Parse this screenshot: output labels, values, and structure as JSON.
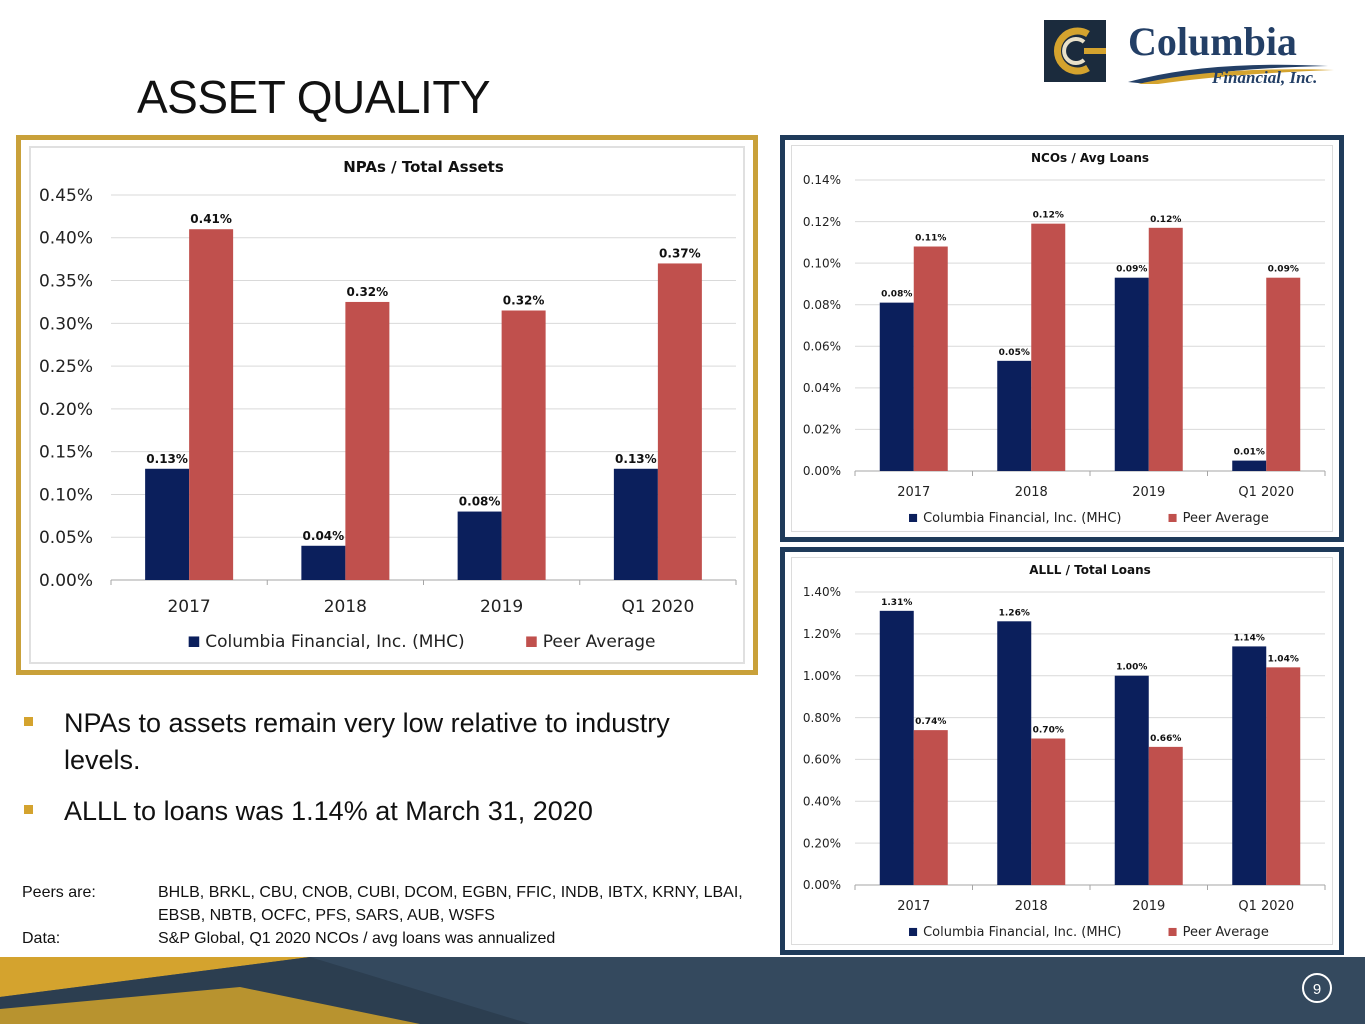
{
  "title": "ASSET QUALITY",
  "logo": {
    "name": "Columbia",
    "subtitle": "Financial, Inc."
  },
  "bullets": [
    "NPAs to assets remain very low relative to industry levels.",
    "ALLL to loans was 1.14% at March 31, 2020"
  ],
  "notes": [
    {
      "label": "Peers are:",
      "text": "BHLB, BRKL, CBU, CNOB, CUBI, DCOM, EGBN, FFIC, INDB, IBTX, KRNY, LBAI, EBSB, NBTB, OCFC, PFS, SARS, AUB, WSFS"
    },
    {
      "label": "Data:",
      "text": "S&P Global, Q1 2020 NCOs / avg loans was annualized"
    }
  ],
  "page_number": "9",
  "colors": {
    "series1": "#0b1f5c",
    "series2": "#c0504d",
    "gold": "#c9a13a",
    "navy_frame": "#1f3b5a",
    "footer": "#34495e"
  },
  "chart_data": [
    {
      "type": "bar",
      "title": "NPAs / Total Assets",
      "categories": [
        "2017",
        "2018",
        "2019",
        "Q1 2020"
      ],
      "series": [
        {
          "name": "Columbia Financial, Inc. (MHC)",
          "values": [
            0.13,
            0.04,
            0.08,
            0.13
          ],
          "labels": [
            "0.13%",
            "0.04%",
            "0.08%",
            "0.13%"
          ]
        },
        {
          "name": "Peer Average",
          "values": [
            0.41,
            0.325,
            0.315,
            0.37
          ],
          "labels": [
            "0.41%",
            "0.32%",
            "0.32%",
            "0.37%"
          ]
        }
      ],
      "ylim": [
        0,
        0.45
      ],
      "yticks": [
        "0.00%",
        "0.05%",
        "0.10%",
        "0.15%",
        "0.20%",
        "0.25%",
        "0.30%",
        "0.35%",
        "0.40%",
        "0.45%"
      ],
      "grid": true,
      "legend": "bottom"
    },
    {
      "type": "bar",
      "title": "NCOs / Avg Loans",
      "categories": [
        "2017",
        "2018",
        "2019",
        "Q1 2020"
      ],
      "series": [
        {
          "name": "Columbia Financial, Inc. (MHC)",
          "values": [
            0.081,
            0.053,
            0.093,
            0.005
          ],
          "labels": [
            "0.08%",
            "0.05%",
            "0.09%",
            "0.01%"
          ]
        },
        {
          "name": "Peer Average",
          "values": [
            0.108,
            0.119,
            0.117,
            0.093
          ],
          "labels": [
            "0.11%",
            "0.12%",
            "0.12%",
            "0.09%"
          ]
        }
      ],
      "ylim": [
        0,
        0.14
      ],
      "yticks": [
        "0.00%",
        "0.02%",
        "0.04%",
        "0.06%",
        "0.08%",
        "0.10%",
        "0.12%",
        "0.14%"
      ],
      "grid": true,
      "legend": "bottom"
    },
    {
      "type": "bar",
      "title": "ALLL / Total Loans",
      "categories": [
        "2017",
        "2018",
        "2019",
        "Q1 2020"
      ],
      "series": [
        {
          "name": "Columbia Financial, Inc. (MHC)",
          "values": [
            1.31,
            1.26,
            1.0,
            1.14
          ],
          "labels": [
            "1.31%",
            "1.26%",
            "1.00%",
            "1.14%"
          ]
        },
        {
          "name": "Peer Average",
          "values": [
            0.74,
            0.7,
            0.66,
            1.04
          ],
          "labels": [
            "0.74%",
            "0.70%",
            "0.66%",
            "1.04%"
          ]
        }
      ],
      "ylim": [
        0,
        1.4
      ],
      "yticks": [
        "0.00%",
        "0.20%",
        "0.40%",
        "0.60%",
        "0.80%",
        "1.00%",
        "1.20%",
        "1.40%"
      ],
      "grid": true,
      "legend": "bottom"
    }
  ]
}
